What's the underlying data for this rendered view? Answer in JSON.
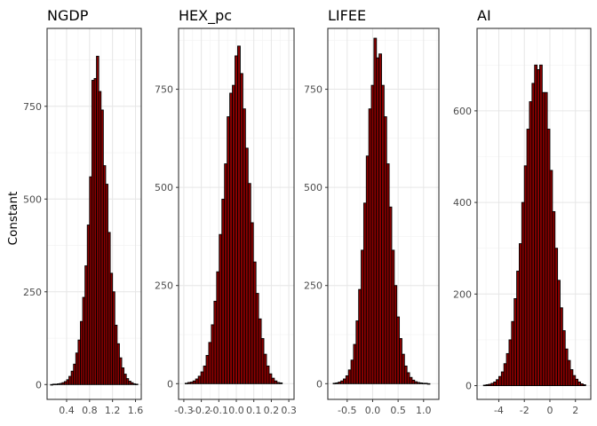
{
  "ylabel": "Constant",
  "colors": {
    "bar_fill": "#8b0000",
    "bar_stroke": "#000000",
    "grid": "#e6e6e6",
    "panel_border": "#333333",
    "text": "#4d4d4d"
  },
  "chart_data": [
    {
      "type": "bar",
      "title": "NGDP",
      "xlim": [
        0.06,
        1.7
      ],
      "ylim": [
        -40,
        960
      ],
      "xticks": [
        0.4,
        0.8,
        1.2,
        1.6
      ],
      "xtick_labels": [
        "0.4",
        "0.8",
        "1.2",
        "1.6"
      ],
      "yticks": [
        0,
        250,
        500,
        750
      ],
      "ytick_labels": [
        "0",
        "250",
        "500",
        "750"
      ],
      "bin_width": 0.04,
      "x": [
        0.14,
        0.18,
        0.22,
        0.26,
        0.3,
        0.34,
        0.38,
        0.42,
        0.46,
        0.5,
        0.54,
        0.58,
        0.62,
        0.66,
        0.7,
        0.74,
        0.78,
        0.82,
        0.86,
        0.9,
        0.94,
        0.98,
        1.02,
        1.06,
        1.1,
        1.14,
        1.18,
        1.22,
        1.26,
        1.3,
        1.34,
        1.38,
        1.42,
        1.46,
        1.5,
        1.54,
        1.58,
        1.62
      ],
      "values": [
        0,
        1,
        1,
        2,
        3,
        5,
        8,
        13,
        22,
        36,
        55,
        85,
        120,
        170,
        235,
        320,
        430,
        560,
        820,
        825,
        885,
        790,
        740,
        590,
        540,
        410,
        300,
        250,
        160,
        110,
        72,
        45,
        28,
        16,
        9,
        5,
        2,
        1
      ]
    },
    {
      "type": "bar",
      "title": "HEX_pc",
      "xlim": [
        -0.33,
        0.33
      ],
      "ylim": [
        -40,
        905
      ],
      "xticks": [
        -0.3,
        -0.2,
        -0.1,
        0.0,
        0.1,
        0.2,
        0.3
      ],
      "xtick_labels": [
        "-0.3",
        "-0.2",
        "-0.1",
        "0.0",
        "0.1",
        "0.2",
        "0.3"
      ],
      "yticks": [
        0,
        250,
        500,
        750
      ],
      "ytick_labels": [
        "0",
        "250",
        "500",
        "750"
      ],
      "bin_width": 0.015,
      "x": [
        -0.285,
        -0.27,
        -0.255,
        -0.24,
        -0.225,
        -0.21,
        -0.195,
        -0.18,
        -0.165,
        -0.15,
        -0.135,
        -0.12,
        -0.105,
        -0.09,
        -0.075,
        -0.06,
        -0.045,
        -0.03,
        -0.015,
        0.0,
        0.015,
        0.03,
        0.045,
        0.06,
        0.075,
        0.09,
        0.105,
        0.12,
        0.135,
        0.15,
        0.165,
        0.18,
        0.195,
        0.21,
        0.225,
        0.24,
        0.255
      ],
      "values": [
        1,
        3,
        4,
        7,
        12,
        19,
        30,
        45,
        72,
        105,
        150,
        210,
        285,
        380,
        470,
        560,
        680,
        740,
        760,
        835,
        860,
        790,
        700,
        600,
        510,
        410,
        310,
        230,
        165,
        115,
        75,
        45,
        25,
        14,
        7,
        3,
        2
      ]
    },
    {
      "type": "bar",
      "title": "LIFEE",
      "xlim": [
        -0.88,
        1.3
      ],
      "ylim": [
        -40,
        905
      ],
      "xticks": [
        -0.5,
        0.0,
        0.5,
        1.0
      ],
      "xtick_labels": [
        "-0.5",
        "0.0",
        "0.5",
        "1.0"
      ],
      "yticks": [
        0,
        250,
        500,
        750
      ],
      "ytick_labels": [
        "0",
        "250",
        "500",
        "750"
      ],
      "bin_width": 0.05,
      "x": [
        -0.75,
        -0.7,
        -0.65,
        -0.6,
        -0.55,
        -0.5,
        -0.45,
        -0.4,
        -0.35,
        -0.3,
        -0.25,
        -0.2,
        -0.15,
        -0.1,
        -0.05,
        0.0,
        0.05,
        0.1,
        0.15,
        0.2,
        0.25,
        0.3,
        0.35,
        0.4,
        0.45,
        0.5,
        0.55,
        0.6,
        0.65,
        0.7,
        0.75,
        0.8,
        0.85,
        0.9,
        0.95,
        1.0,
        1.05,
        1.1
      ],
      "values": [
        1,
        2,
        4,
        7,
        12,
        20,
        35,
        60,
        100,
        160,
        240,
        340,
        460,
        580,
        700,
        760,
        880,
        830,
        840,
        760,
        680,
        560,
        450,
        340,
        250,
        170,
        115,
        75,
        45,
        28,
        16,
        9,
        5,
        3,
        2,
        1,
        1,
        0
      ]
    },
    {
      "type": "bar",
      "title": "AI",
      "xlim": [
        -5.7,
        3.2
      ],
      "ylim": [
        -30,
        780
      ],
      "xticks": [
        -4,
        -2,
        0,
        2
      ],
      "xtick_labels": [
        "-4",
        "-2",
        "0",
        "2"
      ],
      "yticks": [
        0,
        200,
        400,
        600
      ],
      "ytick_labels": [
        "0",
        "200",
        "400",
        "600"
      ],
      "bin_width": 0.2,
      "x": [
        -5.1,
        -4.9,
        -4.7,
        -4.5,
        -4.3,
        -4.1,
        -3.9,
        -3.7,
        -3.5,
        -3.3,
        -3.1,
        -2.9,
        -2.7,
        -2.5,
        -2.3,
        -2.1,
        -1.9,
        -1.7,
        -1.5,
        -1.3,
        -1.1,
        -0.9,
        -0.7,
        -0.5,
        -0.3,
        -0.1,
        0.1,
        0.3,
        0.5,
        0.7,
        0.9,
        1.1,
        1.3,
        1.5,
        1.7,
        1.9,
        2.1,
        2.3,
        2.5,
        2.7
      ],
      "values": [
        1,
        2,
        3,
        5,
        8,
        13,
        20,
        30,
        48,
        70,
        100,
        140,
        190,
        250,
        310,
        400,
        480,
        560,
        620,
        660,
        700,
        690,
        700,
        640,
        640,
        560,
        470,
        380,
        300,
        230,
        170,
        120,
        80,
        55,
        35,
        22,
        14,
        8,
        4,
        2
      ]
    }
  ]
}
